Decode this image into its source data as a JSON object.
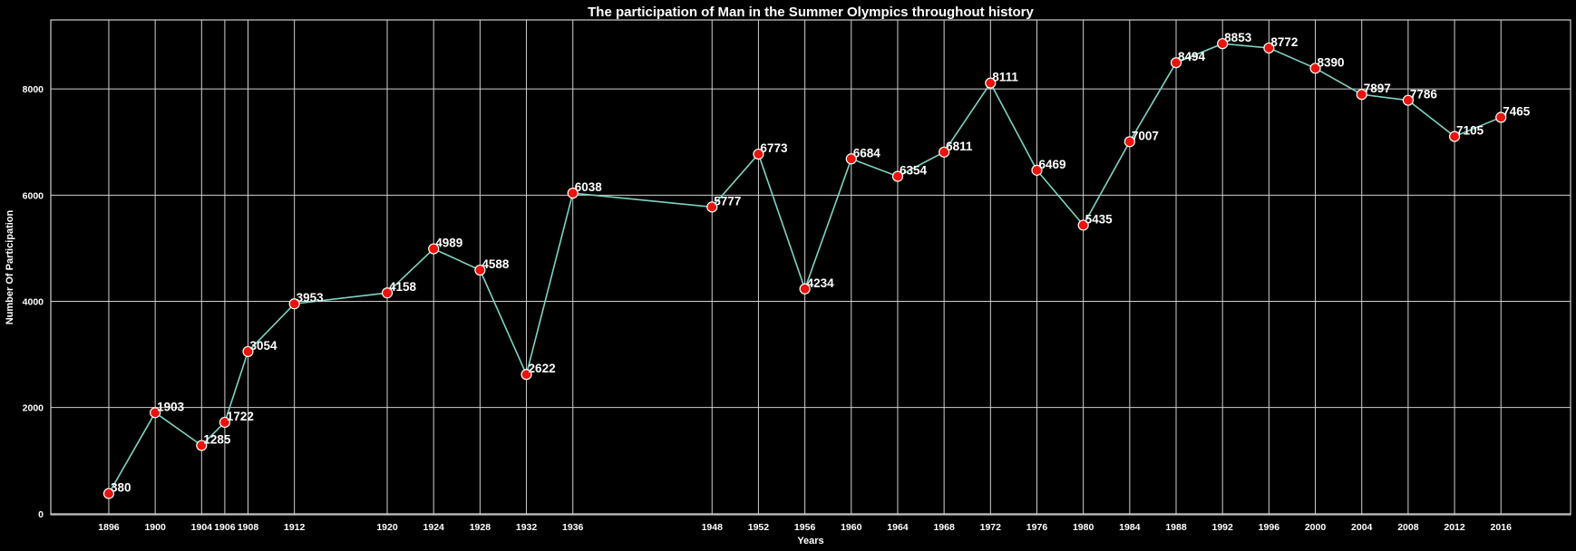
{
  "chart_data": {
    "type": "line",
    "title": "The participation of Man in the Summer Olympics throughout history",
    "xlabel": "Years",
    "ylabel": "Number Of Participation",
    "x": [
      1896,
      1900,
      1904,
      1906,
      1908,
      1912,
      1920,
      1924,
      1928,
      1932,
      1936,
      1948,
      1952,
      1956,
      1960,
      1964,
      1968,
      1972,
      1976,
      1980,
      1984,
      1988,
      1992,
      1996,
      2000,
      2004,
      2008,
      2012,
      2016
    ],
    "series": [
      {
        "values": [
          380,
          1903,
          1285,
          1722,
          3054,
          3953,
          4158,
          4989,
          4588,
          2622,
          6038,
          5777,
          6773,
          4234,
          6684,
          6354,
          6811,
          8111,
          6469,
          5435,
          7007,
          8494,
          8853,
          8772,
          8390,
          7897,
          7786,
          7105,
          7465
        ],
        "line_color": "#7fd3c3",
        "marker_color": "#e8140c"
      }
    ],
    "xlim": [
      1891,
      2022
    ],
    "ylim": [
      -20,
      9300
    ],
    "y_ticks": [
      0,
      2000,
      4000,
      6000,
      8000
    ],
    "grid": true,
    "background": "#000000"
  }
}
